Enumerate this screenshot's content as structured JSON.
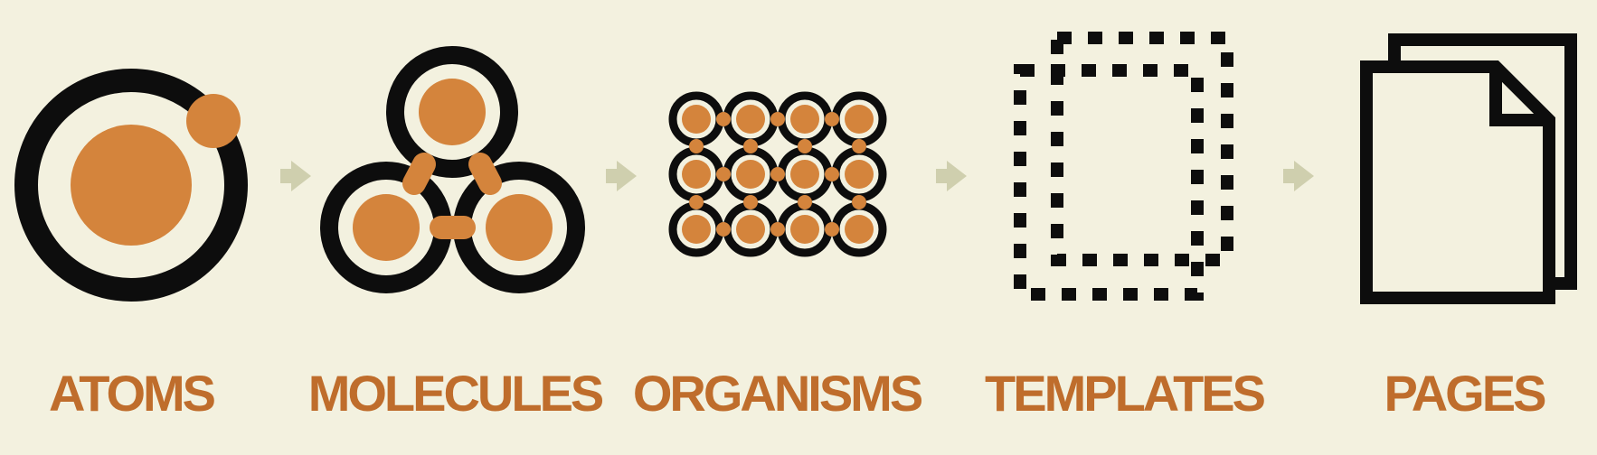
{
  "stages": [
    {
      "label": "ATOMS",
      "icon": "atom-icon"
    },
    {
      "label": "MOLECULES",
      "icon": "molecule-icon"
    },
    {
      "label": "ORGANISMS",
      "icon": "organism-icon"
    },
    {
      "label": "TEMPLATES",
      "icon": "template-icon"
    },
    {
      "label": "PAGES",
      "icon": "pages-icon"
    }
  ],
  "colors": {
    "background": "#f3f1df",
    "ink": "#0d0d0d",
    "accent": "#d4843c",
    "label": "#bf6d2c",
    "arrow": "#cfcfae"
  }
}
